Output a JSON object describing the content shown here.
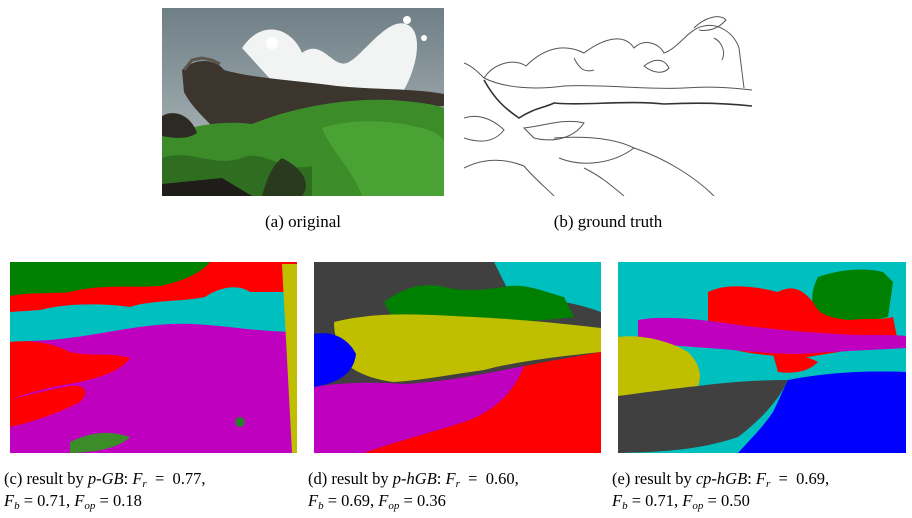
{
  "figure": {
    "top": [
      {
        "id": "a",
        "caption": "(a)  original"
      },
      {
        "id": "b",
        "caption": "(b)  ground truth"
      }
    ],
    "bottom": [
      {
        "id": "c",
        "prefix": "(c)  result by ",
        "method": "p-GB",
        "fr_label": "F",
        "fr_sub": "r",
        "fr_value": "0.77,",
        "fb_label": "F",
        "fb_sub": "b",
        "fb_value": "0.71,",
        "fop_label": "F",
        "fop_sub": "op",
        "fop_value": "0.18"
      },
      {
        "id": "d",
        "prefix": "(d)  result by ",
        "method": "p-hGB",
        "fr_label": "F",
        "fr_sub": "r",
        "fr_value": "0.60,",
        "fb_label": "F",
        "fb_sub": "b",
        "fb_value": "0.69,",
        "fop_label": "F",
        "fop_sub": "op",
        "fop_value": "0.36"
      },
      {
        "id": "e",
        "prefix": "(e)  result by ",
        "method": "cp-hGB",
        "fr_label": "F",
        "fr_sub": "r",
        "fr_value": "0.69,",
        "fb_label": "F",
        "fb_sub": "b",
        "fb_value": "0.71,",
        "fop_label": "F",
        "fop_sub": "op",
        "fop_value": "0.50"
      }
    ],
    "colors": {
      "green": "#008000",
      "red": "#ff0000",
      "cyan": "#00bfbf",
      "magenta": "#bf00bf",
      "blue": "#0000ff",
      "olive": "#bfbf00",
      "gray": "#404040",
      "moss": "#3c8c2a",
      "rock": "#2d2a24",
      "water": "#8a9aa0"
    }
  }
}
